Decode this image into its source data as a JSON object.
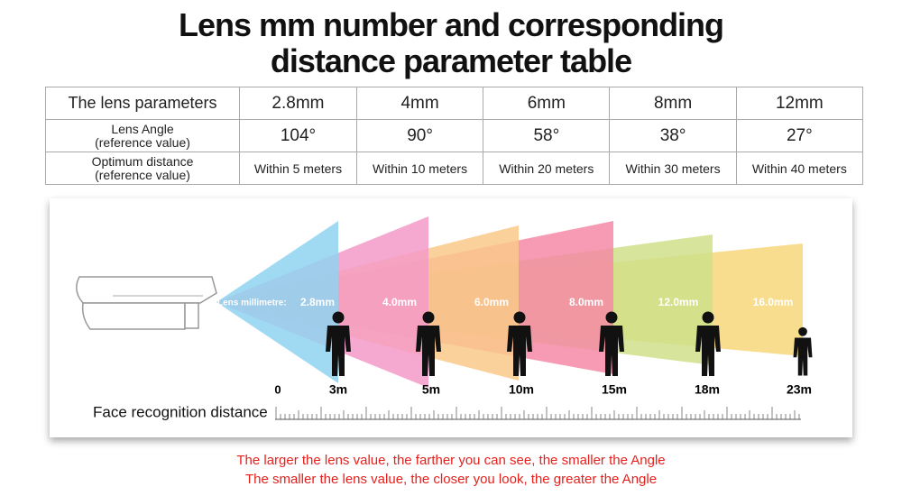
{
  "title": [
    "Lens mm number and corresponding",
    "distance parameter table"
  ],
  "table": {
    "rows": [
      [
        [
          "The lens parameters"
        ],
        [
          "2.8mm"
        ],
        [
          "4mm"
        ],
        [
          "6mm"
        ],
        [
          "8mm"
        ],
        [
          "12mm"
        ]
      ],
      [
        [
          "Lens Angle",
          "(reference value)"
        ],
        [
          "104°"
        ],
        [
          "90°"
        ],
        [
          "58°"
        ],
        [
          "38°"
        ],
        [
          "27°"
        ]
      ],
      [
        [
          "Optimum distance",
          "(reference value)"
        ],
        [
          "Within 5 meters"
        ],
        [
          "Within 10 meters"
        ],
        [
          "Within 20 meters"
        ],
        [
          "Within 30 meters"
        ],
        [
          "Within 40 meters"
        ]
      ]
    ]
  },
  "diagram": {
    "lens_label": "Lens millimetre:",
    "lenses": [
      "2.8mm",
      "4.0mm",
      "6.0mm",
      "8.0mm",
      "12.0mm",
      "16.0mm"
    ],
    "origin": "0",
    "distances": [
      "3m",
      "5m",
      "10m",
      "15m",
      "18m",
      "23m"
    ],
    "axis_label": "Face recognition distance"
  },
  "notes": [
    "The larger the lens value, the farther you can see, the smaller the Angle",
    "The smaller the lens value, the closer you look, the greater the Angle"
  ]
}
